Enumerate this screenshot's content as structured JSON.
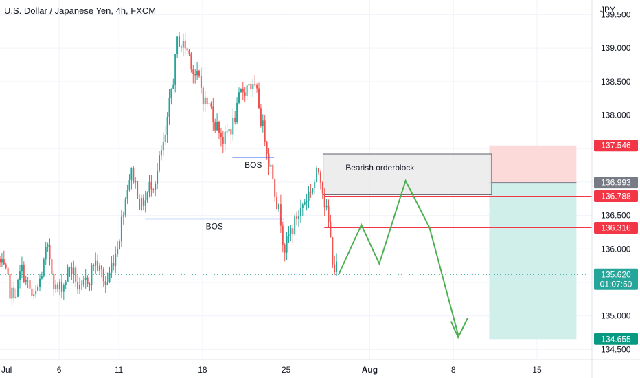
{
  "header": {
    "title": "U.S. Dollar / Japanese Yen, 4h, FXCM",
    "currency": "JPY"
  },
  "colors": {
    "up": "#26a69a",
    "down": "#ef5350",
    "bos_line": "#2962ff",
    "projection": "#4caf50",
    "stop_zone": "#fcd3d3",
    "target_zone": "#cdeeea",
    "orderblock_fill": "#e8e8ea",
    "price_level_line": "#f23645",
    "current_price_line": "#26a69a",
    "entry_tag": "#787b86"
  },
  "chart_data": {
    "type": "candlestick",
    "symbol": "USDJPY",
    "interval": "4h",
    "y_ticks": [
      "139.500",
      "139.000",
      "138.500",
      "138.000",
      "137.500",
      "137.000",
      "136.500",
      "136.000",
      "135.500",
      "135.000",
      "134.500"
    ],
    "ylim": [
      134.35,
      139.72
    ],
    "x_ticks": [
      {
        "label": "Jul",
        "day": 1
      },
      {
        "label": "6",
        "day": 6
      },
      {
        "label": "11",
        "day": 11
      },
      {
        "label": "18",
        "day": 18
      },
      {
        "label": "25",
        "day": 25
      },
      {
        "label": "Aug",
        "day": 32
      },
      {
        "label": "8",
        "day": 39
      },
      {
        "label": "15",
        "day": 46
      }
    ],
    "xlim": [
      1.05,
      50.6
    ],
    "anchors": [
      [
        1,
        135.85
      ],
      [
        2,
        135.2
      ],
      [
        3,
        135.7
      ],
      [
        4,
        135.1
      ],
      [
        5,
        136.0
      ],
      [
        6,
        135.3
      ],
      [
        7,
        135.8
      ],
      [
        8,
        135.2
      ],
      [
        9,
        135.9
      ],
      [
        10,
        135.4
      ],
      [
        11,
        136.2
      ],
      [
        12,
        137.3
      ],
      [
        13,
        136.6
      ],
      [
        14,
        137.1
      ],
      [
        15,
        137.6
      ],
      [
        16,
        139.2
      ],
      [
        17,
        138.9
      ],
      [
        18,
        138.3
      ],
      [
        19,
        138.0
      ],
      [
        20,
        137.6
      ],
      [
        21,
        138.1
      ],
      [
        22,
        138.6
      ],
      [
        23,
        137.9
      ],
      [
        24,
        137.1
      ],
      [
        25,
        136.0
      ],
      [
        26,
        136.5
      ],
      [
        27,
        136.9
      ],
      [
        28,
        137.2
      ],
      [
        28.5,
        136.5
      ],
      [
        29,
        135.7
      ]
    ],
    "price_levels": {
      "stop": "137.546",
      "entry": "136.993",
      "resistance_1": "136.788",
      "resistance_2": "136.316",
      "current": "135.620",
      "target": "134.655",
      "countdown": "01:07:50"
    },
    "annotations": {
      "orderblock_label": "Bearish orderblock",
      "bos_upper_label": "BOS",
      "bos_lower_label": "BOS"
    },
    "bos_upper": {
      "day_start": 20.5,
      "day_end": 24,
      "price": 137.37
    },
    "bos_lower": {
      "day_start": 13.2,
      "day_end": 24.8,
      "price": 136.45
    },
    "orderblock": {
      "day_start": 28.1,
      "day_end": 42.2,
      "price_top": 137.42,
      "price_bottom": 136.81
    },
    "position": {
      "day_start": 42.0,
      "day_end": 49.3
    },
    "projection_path": [
      [
        29.4,
        135.62
      ],
      [
        31.3,
        136.36
      ],
      [
        32.8,
        135.78
      ],
      [
        35.0,
        137.02
      ],
      [
        37.0,
        136.32
      ],
      [
        39.4,
        134.72
      ]
    ],
    "projection_arrowhead": [
      [
        38.8,
        134.92
      ],
      [
        39.4,
        134.68
      ],
      [
        40.2,
        134.97
      ]
    ]
  }
}
